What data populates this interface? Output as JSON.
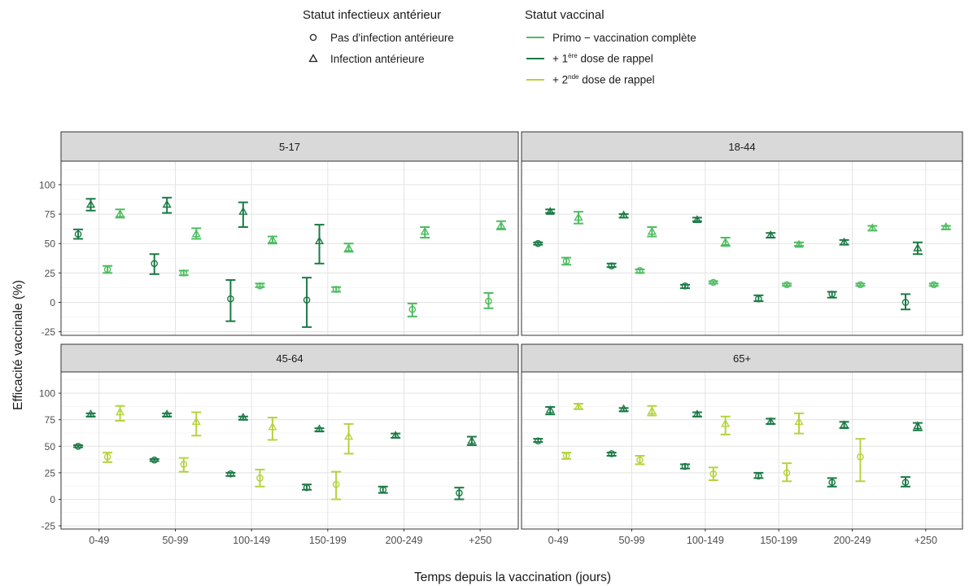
{
  "chart_data": {
    "type": "scatter",
    "subtype": "point-with-errorbars, faceted 2x2",
    "xlabel": "Temps depuis la vaccination (jours)",
    "ylabel": "Efficacité vaccinale (%)",
    "categories": [
      "0-49",
      "50-99",
      "100-149",
      "150-199",
      "200-249",
      "+250"
    ],
    "ylim": [
      -28,
      120
    ],
    "yticks": [
      -25,
      0,
      25,
      50,
      75,
      100
    ],
    "grid": true,
    "legend_position": "top",
    "shape_legend": {
      "title": "Statut infectieux antérieur",
      "items": [
        {
          "key": "none",
          "label": "Pas d'infection antérieure",
          "shape": "circle"
        },
        {
          "key": "prior",
          "label": "Infection antérieure",
          "shape": "triangle"
        }
      ]
    },
    "color_legend": {
      "title": "Statut vaccinal",
      "items": [
        {
          "key": "primo",
          "label_main": "Primo − vaccination complète",
          "color": "#4dbd5f"
        },
        {
          "key": "r1",
          "prefix": "+ 1",
          "sup": "ère",
          "suffix": " dose de rappel",
          "color": "#1b7a45"
        },
        {
          "key": "r2",
          "prefix": "+ 2",
          "sup": "nde",
          "suffix": " dose de rappel",
          "color": "#b5d33d"
        }
      ]
    },
    "facets": [
      {
        "title": "5-17",
        "series": [
          {
            "vacc": "r1",
            "shape": "circle",
            "points": [
              {
                "x": "0-49",
                "y": 58,
                "lo": 54,
                "hi": 62
              },
              {
                "x": "50-99",
                "y": 33,
                "lo": 24,
                "hi": 41
              },
              {
                "x": "100-149",
                "y": 3,
                "lo": -16,
                "hi": 19
              },
              {
                "x": "150-199",
                "y": 2,
                "lo": -21,
                "hi": 21
              }
            ]
          },
          {
            "vacc": "r1",
            "shape": "triangle",
            "points": [
              {
                "x": "0-49",
                "y": 83,
                "lo": 78,
                "hi": 88
              },
              {
                "x": "50-99",
                "y": 83,
                "lo": 76,
                "hi": 89
              },
              {
                "x": "100-149",
                "y": 77,
                "lo": 64,
                "hi": 85
              },
              {
                "x": "150-199",
                "y": 52,
                "lo": 33,
                "hi": 66
              }
            ]
          },
          {
            "vacc": "primo",
            "shape": "circle",
            "points": [
              {
                "x": "0-49",
                "y": 28,
                "lo": 25,
                "hi": 31
              },
              {
                "x": "50-99",
                "y": 25,
                "lo": 23,
                "hi": 27
              },
              {
                "x": "100-149",
                "y": 14,
                "lo": 13,
                "hi": 16
              },
              {
                "x": "150-199",
                "y": 11,
                "lo": 9,
                "hi": 13
              },
              {
                "x": "200-249",
                "y": -6,
                "lo": -12,
                "hi": -1
              },
              {
                "x": "+250",
                "y": 1,
                "lo": -5,
                "hi": 8
              }
            ]
          },
          {
            "vacc": "primo",
            "shape": "triangle",
            "points": [
              {
                "x": "0-49",
                "y": 75,
                "lo": 72,
                "hi": 79
              },
              {
                "x": "50-99",
                "y": 58,
                "lo": 54,
                "hi": 63
              },
              {
                "x": "100-149",
                "y": 53,
                "lo": 50,
                "hi": 56
              },
              {
                "x": "150-199",
                "y": 46,
                "lo": 43,
                "hi": 50
              },
              {
                "x": "200-249",
                "y": 60,
                "lo": 55,
                "hi": 64
              },
              {
                "x": "+250",
                "y": 65,
                "lo": 62,
                "hi": 69
              }
            ]
          }
        ]
      },
      {
        "title": "18-44",
        "series": [
          {
            "vacc": "r1",
            "shape": "circle",
            "points": [
              {
                "x": "0-49",
                "y": 50,
                "lo": 49,
                "hi": 51
              },
              {
                "x": "50-99",
                "y": 31,
                "lo": 30,
                "hi": 33
              },
              {
                "x": "100-149",
                "y": 14,
                "lo": 12,
                "hi": 15
              },
              {
                "x": "150-199",
                "y": 3,
                "lo": 1,
                "hi": 6
              },
              {
                "x": "200-249",
                "y": 7,
                "lo": 4,
                "hi": 9
              },
              {
                "x": "+250",
                "y": 0,
                "lo": -6,
                "hi": 7
              }
            ]
          },
          {
            "vacc": "r1",
            "shape": "triangle",
            "points": [
              {
                "x": "0-49",
                "y": 77,
                "lo": 76,
                "hi": 79
              },
              {
                "x": "50-99",
                "y": 74,
                "lo": 72,
                "hi": 75
              },
              {
                "x": "100-149",
                "y": 70,
                "lo": 69,
                "hi": 72
              },
              {
                "x": "150-199",
                "y": 57,
                "lo": 55,
                "hi": 59
              },
              {
                "x": "200-249",
                "y": 51,
                "lo": 49,
                "hi": 53
              },
              {
                "x": "+250",
                "y": 46,
                "lo": 41,
                "hi": 51
              }
            ]
          },
          {
            "vacc": "primo",
            "shape": "circle",
            "points": [
              {
                "x": "0-49",
                "y": 35,
                "lo": 32,
                "hi": 38
              },
              {
                "x": "50-99",
                "y": 27,
                "lo": 25,
                "hi": 28
              },
              {
                "x": "100-149",
                "y": 17,
                "lo": 16,
                "hi": 18
              },
              {
                "x": "150-199",
                "y": 15,
                "lo": 14,
                "hi": 16
              },
              {
                "x": "200-249",
                "y": 15,
                "lo": 14,
                "hi": 16
              },
              {
                "x": "+250",
                "y": 15,
                "lo": 14,
                "hi": 16
              }
            ]
          },
          {
            "vacc": "primo",
            "shape": "triangle",
            "points": [
              {
                "x": "0-49",
                "y": 72,
                "lo": 67,
                "hi": 77
              },
              {
                "x": "50-99",
                "y": 60,
                "lo": 56,
                "hi": 64
              },
              {
                "x": "100-149",
                "y": 51,
                "lo": 48,
                "hi": 55
              },
              {
                "x": "150-199",
                "y": 49,
                "lo": 48,
                "hi": 51
              },
              {
                "x": "200-249",
                "y": 63,
                "lo": 61,
                "hi": 65
              },
              {
                "x": "+250",
                "y": 64,
                "lo": 62,
                "hi": 65
              }
            ]
          }
        ]
      },
      {
        "title": "45-64",
        "series": [
          {
            "vacc": "r1",
            "shape": "circle",
            "points": [
              {
                "x": "0-49",
                "y": 50,
                "lo": 49,
                "hi": 51
              },
              {
                "x": "50-99",
                "y": 37,
                "lo": 36,
                "hi": 38
              },
              {
                "x": "100-149",
                "y": 24,
                "lo": 22,
                "hi": 25
              },
              {
                "x": "150-199",
                "y": 11,
                "lo": 9,
                "hi": 14
              },
              {
                "x": "200-249",
                "y": 9,
                "lo": 6,
                "hi": 12
              },
              {
                "x": "+250",
                "y": 6,
                "lo": 0,
                "hi": 11
              }
            ]
          },
          {
            "vacc": "r1",
            "shape": "triangle",
            "points": [
              {
                "x": "0-49",
                "y": 80,
                "lo": 78,
                "hi": 81
              },
              {
                "x": "50-99",
                "y": 80,
                "lo": 78,
                "hi": 81
              },
              {
                "x": "100-149",
                "y": 77,
                "lo": 75,
                "hi": 78
              },
              {
                "x": "150-199",
                "y": 66,
                "lo": 64,
                "hi": 67
              },
              {
                "x": "200-249",
                "y": 60,
                "lo": 58,
                "hi": 62
              },
              {
                "x": "+250",
                "y": 55,
                "lo": 51,
                "hi": 59
              }
            ]
          },
          {
            "vacc": "r2",
            "shape": "circle",
            "points": [
              {
                "x": "0-49",
                "y": 40,
                "lo": 35,
                "hi": 44
              },
              {
                "x": "50-99",
                "y": 33,
                "lo": 26,
                "hi": 39
              },
              {
                "x": "100-149",
                "y": 20,
                "lo": 12,
                "hi": 28
              },
              {
                "x": "150-199",
                "y": 14,
                "lo": 0,
                "hi": 26
              }
            ]
          },
          {
            "vacc": "r2",
            "shape": "triangle",
            "points": [
              {
                "x": "0-49",
                "y": 82,
                "lo": 74,
                "hi": 88
              },
              {
                "x": "50-99",
                "y": 73,
                "lo": 60,
                "hi": 82
              },
              {
                "x": "100-149",
                "y": 68,
                "lo": 56,
                "hi": 77
              },
              {
                "x": "150-199",
                "y": 59,
                "lo": 43,
                "hi": 71
              }
            ]
          }
        ]
      },
      {
        "title": "65+",
        "series": [
          {
            "vacc": "r1",
            "shape": "circle",
            "points": [
              {
                "x": "0-49",
                "y": 55,
                "lo": 54,
                "hi": 57
              },
              {
                "x": "50-99",
                "y": 43,
                "lo": 41,
                "hi": 44
              },
              {
                "x": "100-149",
                "y": 31,
                "lo": 29,
                "hi": 33
              },
              {
                "x": "150-199",
                "y": 22,
                "lo": 20,
                "hi": 25
              },
              {
                "x": "200-249",
                "y": 16,
                "lo": 12,
                "hi": 20
              },
              {
                "x": "+250",
                "y": 16,
                "lo": 12,
                "hi": 21
              }
            ]
          },
          {
            "vacc": "r1",
            "shape": "triangle",
            "points": [
              {
                "x": "0-49",
                "y": 84,
                "lo": 80,
                "hi": 87
              },
              {
                "x": "50-99",
                "y": 85,
                "lo": 83,
                "hi": 86
              },
              {
                "x": "100-149",
                "y": 80,
                "lo": 78,
                "hi": 82
              },
              {
                "x": "150-199",
                "y": 73,
                "lo": 71,
                "hi": 76
              },
              {
                "x": "200-249",
                "y": 70,
                "lo": 67,
                "hi": 73
              },
              {
                "x": "+250",
                "y": 69,
                "lo": 65,
                "hi": 72
              }
            ]
          },
          {
            "vacc": "r2",
            "shape": "circle",
            "points": [
              {
                "x": "0-49",
                "y": 41,
                "lo": 38,
                "hi": 44
              },
              {
                "x": "50-99",
                "y": 37,
                "lo": 33,
                "hi": 41
              },
              {
                "x": "100-149",
                "y": 24,
                "lo": 18,
                "hi": 30
              },
              {
                "x": "150-199",
                "y": 25,
                "lo": 17,
                "hi": 34
              },
              {
                "x": "200-249",
                "y": 40,
                "lo": 17,
                "hi": 57
              }
            ]
          },
          {
            "vacc": "r2",
            "shape": "triangle",
            "points": [
              {
                "x": "0-49",
                "y": 87,
                "lo": 85,
                "hi": 90
              },
              {
                "x": "50-99",
                "y": 83,
                "lo": 79,
                "hi": 88
              },
              {
                "x": "100-149",
                "y": 71,
                "lo": 61,
                "hi": 78
              },
              {
                "x": "150-199",
                "y": 73,
                "lo": 62,
                "hi": 81
              }
            ]
          }
        ]
      }
    ]
  }
}
